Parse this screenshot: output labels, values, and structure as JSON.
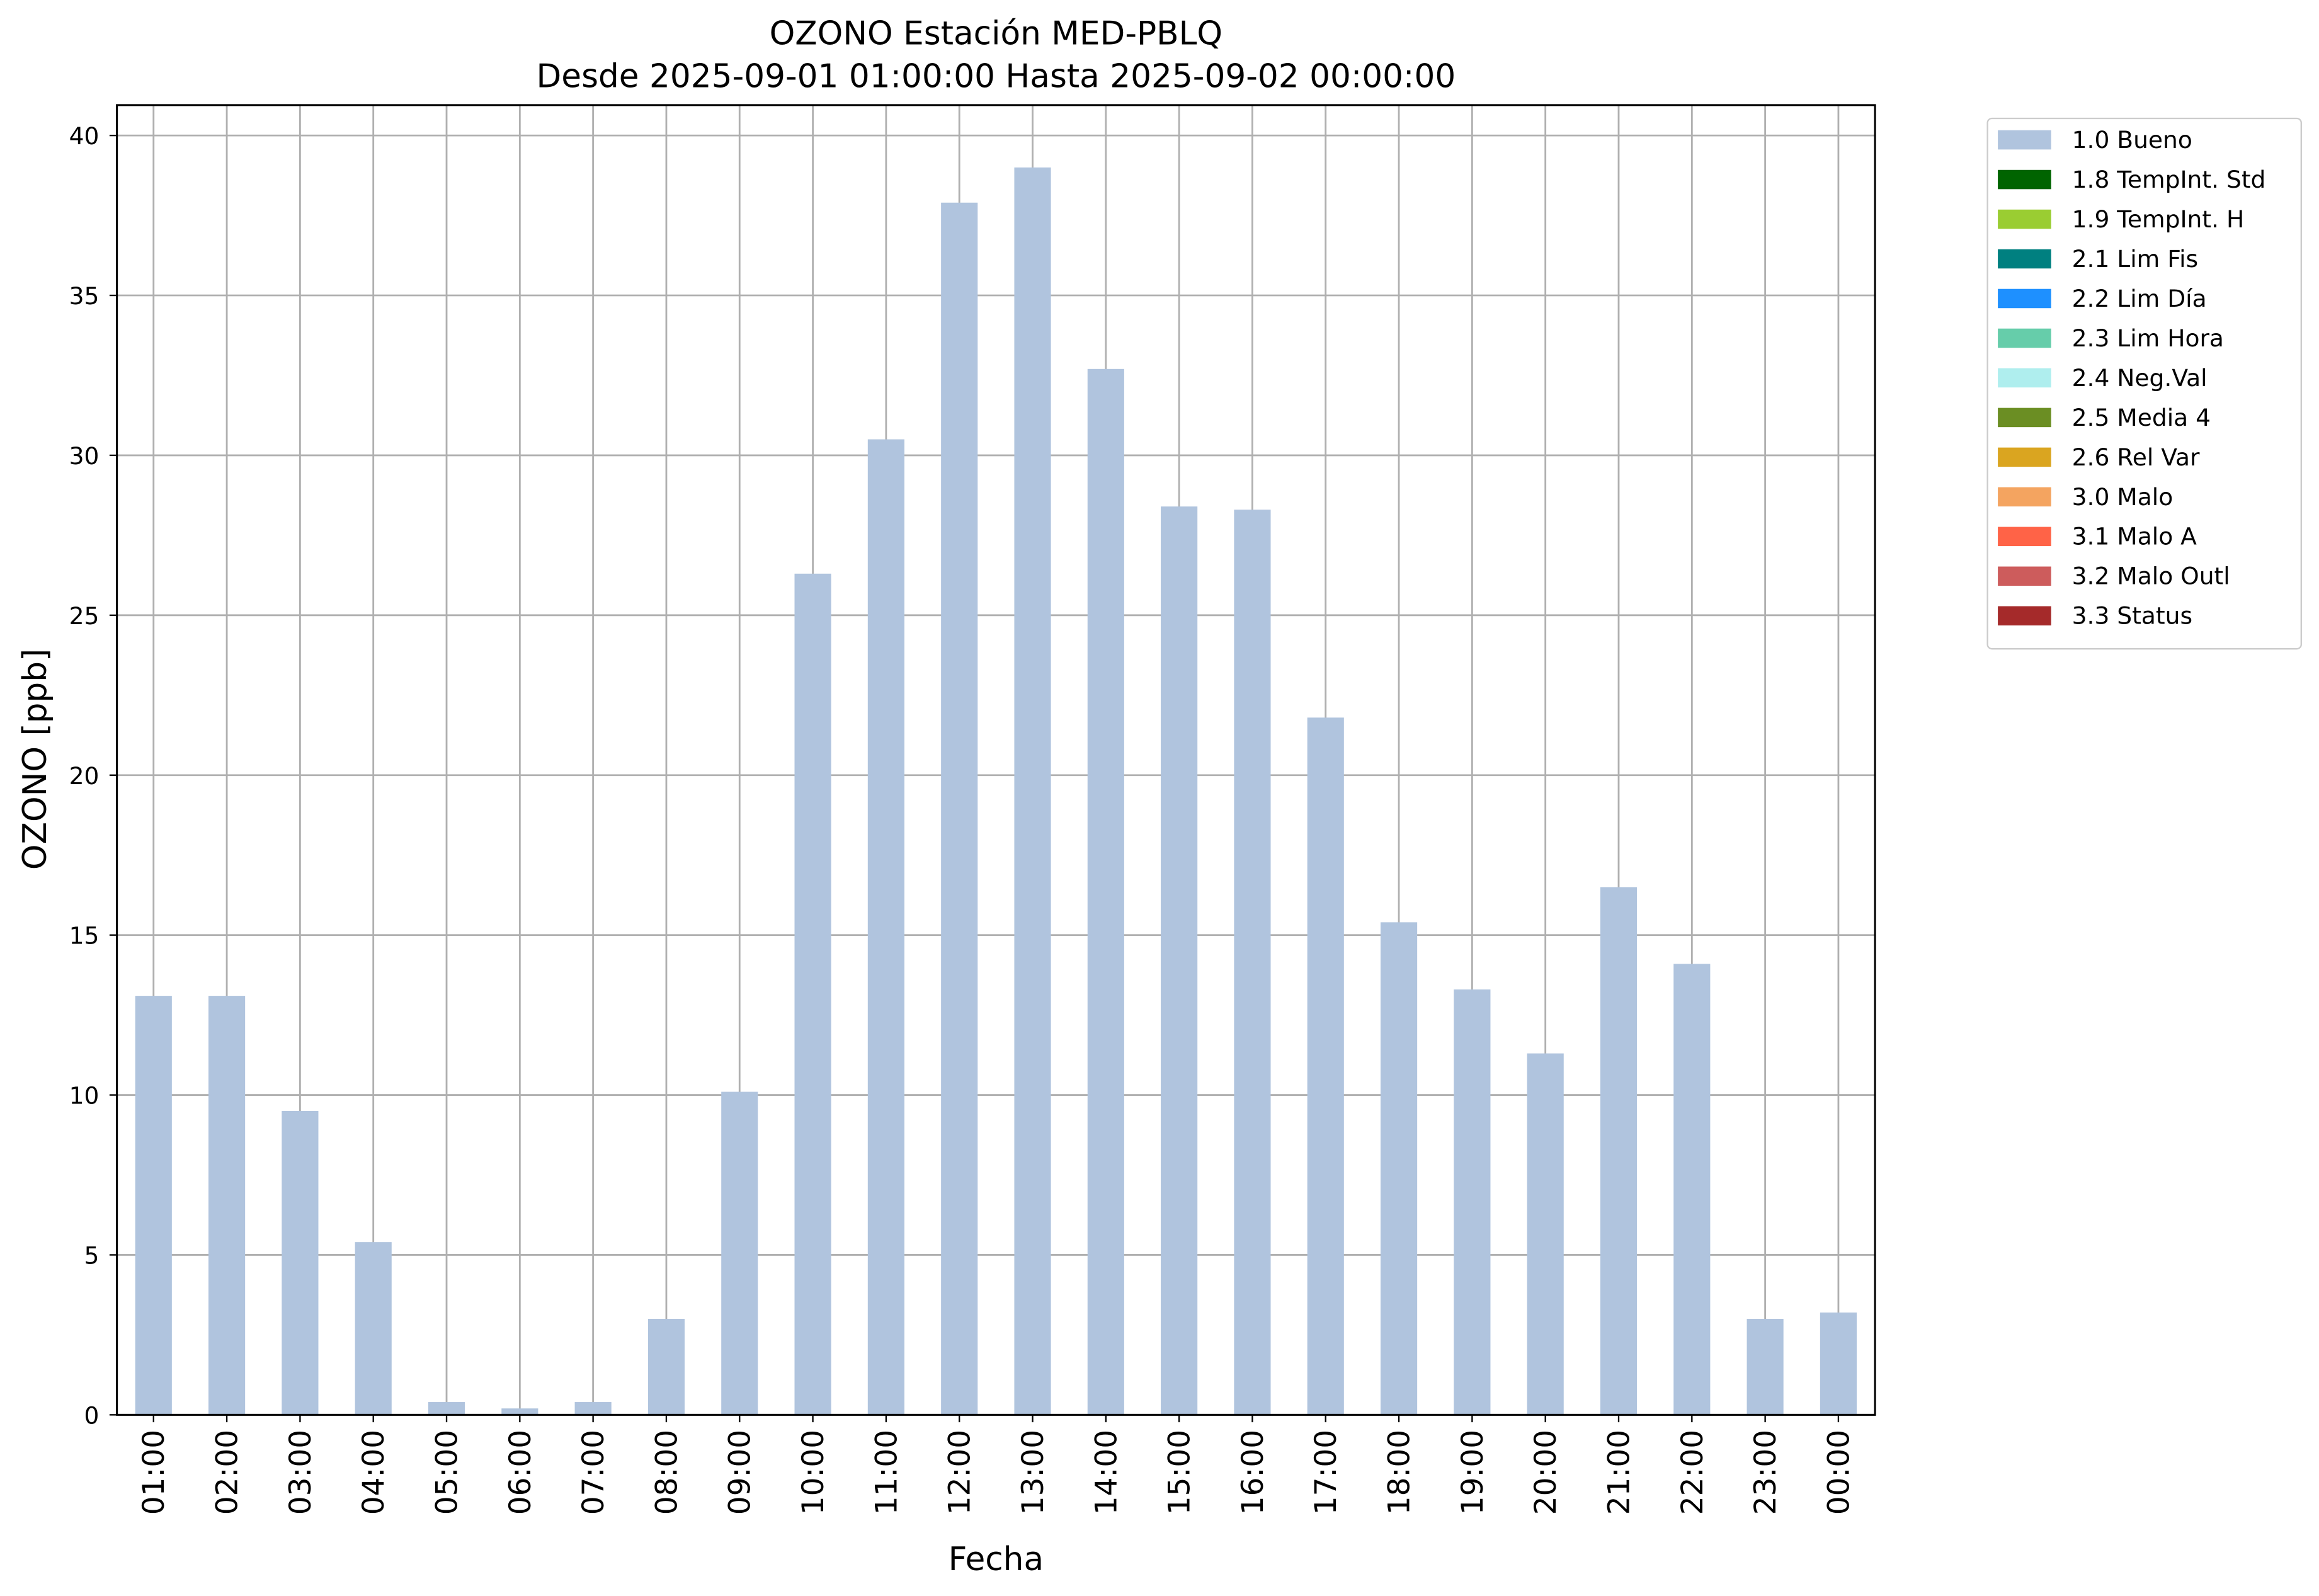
{
  "chart_data": {
    "type": "bar",
    "title": "OZONO Estación MED-PBLQ",
    "subtitle": "Desde 2025-09-01 01:00:00 Hasta 2025-09-02 00:00:00",
    "x_label": "Fecha",
    "y_label": "OZONO [ppb]",
    "categories": [
      "01:00",
      "02:00",
      "03:00",
      "04:00",
      "05:00",
      "06:00",
      "07:00",
      "08:00",
      "09:00",
      "10:00",
      "11:00",
      "12:00",
      "13:00",
      "14:00",
      "15:00",
      "16:00",
      "17:00",
      "18:00",
      "19:00",
      "20:00",
      "21:00",
      "22:00",
      "23:00",
      "00:00"
    ],
    "series": [
      {
        "name": "1.0 Bueno",
        "color": "#b0c4de",
        "values": [
          13.1,
          13.1,
          9.5,
          5.4,
          0.4,
          0.2,
          0.4,
          3.0,
          10.1,
          26.3,
          30.5,
          37.9,
          39.0,
          32.7,
          28.4,
          28.3,
          21.8,
          15.4,
          13.3,
          11.3,
          16.5,
          14.1,
          3.0,
          3.2
        ]
      },
      {
        "name": "1.8 TempInt. Std",
        "color": "#006400"
      },
      {
        "name": "1.9 TempInt. H",
        "color": "#9acd32"
      },
      {
        "name": "2.1 Lim Fis",
        "color": "#008080"
      },
      {
        "name": "2.2 Lim Día",
        "color": "#1e90ff"
      },
      {
        "name": "2.3 Lim Hora",
        "color": "#66cdaa"
      },
      {
        "name": "2.4 Neg.Val",
        "color": "#afeeee"
      },
      {
        "name": "2.5 Media 4",
        "color": "#6b8e23"
      },
      {
        "name": "2.6 Rel Var",
        "color": "#daa520"
      },
      {
        "name": "3.0 Malo",
        "color": "#f4a460"
      },
      {
        "name": "3.1 Malo A",
        "color": "#ff6347"
      },
      {
        "name": "3.2 Malo Outl",
        "color": "#cd5c5c"
      },
      {
        "name": "3.3 Status",
        "color": "#a52a2a"
      }
    ],
    "ylim": [
      0,
      40.95
    ],
    "yticks": [
      0,
      5,
      10,
      15,
      20,
      25,
      30,
      35,
      40
    ],
    "grid": true,
    "legend": "outside-upper-right"
  }
}
